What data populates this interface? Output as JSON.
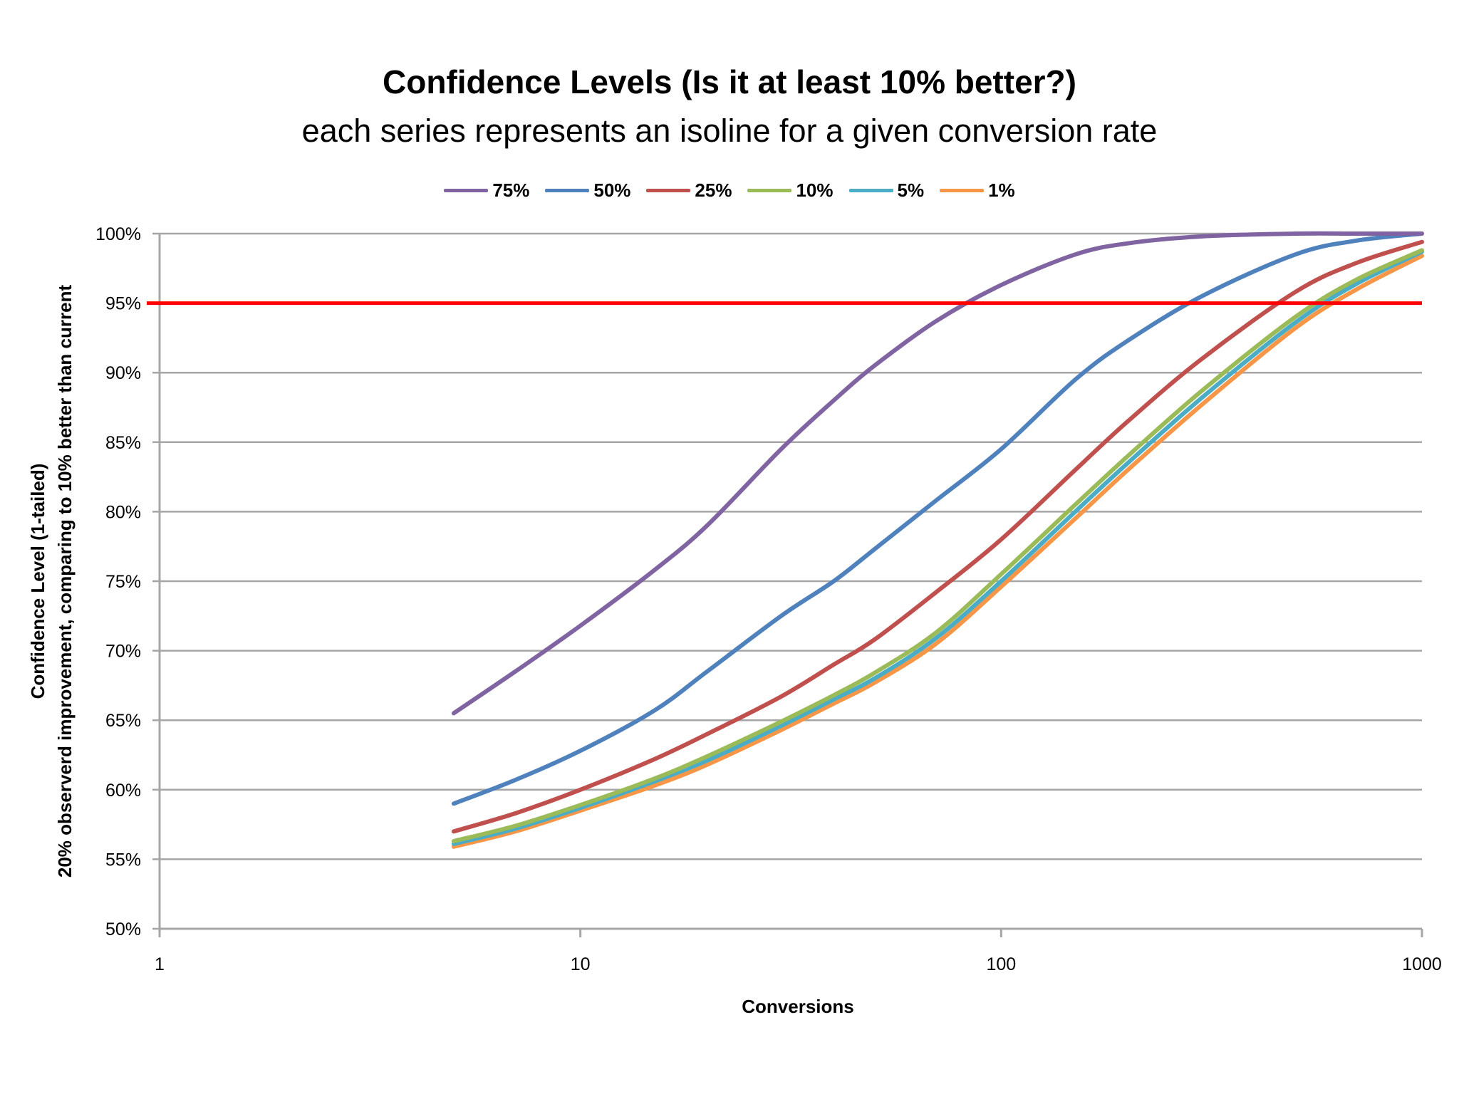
{
  "chart_data": {
    "type": "line",
    "title": "Confidence Levels (Is it at least 10% better?)",
    "subtitle": "each series represents an isoline for a given conversion rate",
    "xlabel": "Conversions",
    "ylabel_line1": "Confidence Level (1-tailed)",
    "ylabel_line2": "20% observerd improvement, comparing to 10% better than current",
    "xscale": "log",
    "xlim": [
      1,
      1000
    ],
    "ylim": [
      0.5,
      1.0
    ],
    "x_ticks": [
      1,
      10,
      100,
      1000
    ],
    "x_tick_labels": [
      "1",
      "10",
      "100",
      "1000"
    ],
    "y_ticks": [
      0.5,
      0.55,
      0.6,
      0.65,
      0.7,
      0.75,
      0.8,
      0.85,
      0.9,
      0.95,
      1.0
    ],
    "y_tick_labels": [
      "50%",
      "55%",
      "60%",
      "65%",
      "70%",
      "75%",
      "80%",
      "85%",
      "90%",
      "95%",
      "100%"
    ],
    "grid": true,
    "legend_position": "top",
    "threshold": {
      "value": 0.95,
      "color": "#ff0000"
    },
    "x": [
      5,
      7,
      10,
      15,
      20,
      30,
      40,
      50,
      70,
      100,
      150,
      200,
      300,
      500,
      700,
      1000
    ],
    "series": [
      {
        "name": "75%",
        "color": "#8064a2",
        "values": [
          0.655,
          0.685,
          0.718,
          0.758,
          0.79,
          0.845,
          0.88,
          0.905,
          0.937,
          0.963,
          0.985,
          0.993,
          0.998,
          1.0,
          1.0,
          1.0
        ]
      },
      {
        "name": "50%",
        "color": "#4f81bd",
        "values": [
          0.59,
          0.607,
          0.628,
          0.657,
          0.685,
          0.725,
          0.75,
          0.773,
          0.808,
          0.845,
          0.895,
          0.923,
          0.955,
          0.985,
          0.995,
          1.0
        ]
      },
      {
        "name": "25%",
        "color": "#c0504d",
        "values": [
          0.57,
          0.583,
          0.6,
          0.622,
          0.64,
          0.667,
          0.69,
          0.708,
          0.742,
          0.78,
          0.83,
          0.865,
          0.91,
          0.958,
          0.979,
          0.994
        ]
      },
      {
        "name": "10%",
        "color": "#9bbb59",
        "values": [
          0.563,
          0.574,
          0.589,
          0.608,
          0.624,
          0.649,
          0.668,
          0.684,
          0.713,
          0.755,
          0.805,
          0.84,
          0.887,
          0.94,
          0.967,
          0.988
        ]
      },
      {
        "name": "5%",
        "color": "#4bacc6",
        "values": [
          0.561,
          0.572,
          0.587,
          0.606,
          0.621,
          0.646,
          0.665,
          0.68,
          0.709,
          0.75,
          0.8,
          0.835,
          0.882,
          0.936,
          0.964,
          0.987
        ]
      },
      {
        "name": "1%",
        "color": "#f79646",
        "values": [
          0.559,
          0.57,
          0.585,
          0.603,
          0.618,
          0.643,
          0.662,
          0.677,
          0.705,
          0.746,
          0.795,
          0.83,
          0.877,
          0.932,
          0.96,
          0.984
        ]
      }
    ]
  }
}
